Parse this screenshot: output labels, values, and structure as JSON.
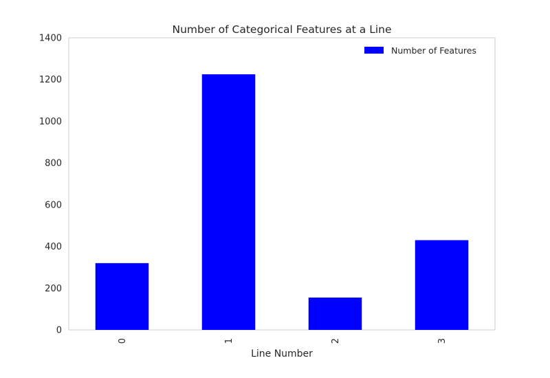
{
  "chart_data": {
    "type": "bar",
    "title": "Number of Categorical Features at a Line",
    "xlabel": "Line Number",
    "ylabel": "",
    "categories": [
      "0",
      "1",
      "2",
      "3"
    ],
    "series": [
      {
        "name": "Number of Features",
        "values": [
          320,
          1225,
          155,
          430
        ],
        "color": "#0000ff"
      }
    ],
    "ylim": [
      0,
      1400
    ],
    "yticks": [
      0,
      200,
      400,
      600,
      800,
      1000,
      1200,
      1400
    ],
    "grid": false,
    "legend_position": "top-right",
    "xtick_rotation": "vertical"
  }
}
